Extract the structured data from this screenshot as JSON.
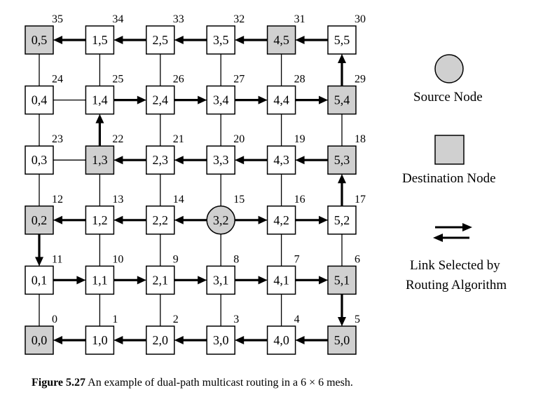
{
  "diagram": {
    "nodes": [
      {
        "id": "0,0",
        "col": 0,
        "row": 0,
        "type": "destination",
        "order": "0"
      },
      {
        "id": "1,0",
        "col": 1,
        "row": 0,
        "type": "normal",
        "order": "1"
      },
      {
        "id": "2,0",
        "col": 2,
        "row": 0,
        "type": "normal",
        "order": "2"
      },
      {
        "id": "3,0",
        "col": 3,
        "row": 0,
        "type": "normal",
        "order": "3"
      },
      {
        "id": "4,0",
        "col": 4,
        "row": 0,
        "type": "normal",
        "order": "4"
      },
      {
        "id": "5,0",
        "col": 5,
        "row": 0,
        "type": "destination",
        "order": "5"
      },
      {
        "id": "0,1",
        "col": 0,
        "row": 1,
        "type": "normal",
        "order": "11"
      },
      {
        "id": "1,1",
        "col": 1,
        "row": 1,
        "type": "normal",
        "order": "10"
      },
      {
        "id": "2,1",
        "col": 2,
        "row": 1,
        "type": "normal",
        "order": "9"
      },
      {
        "id": "3,1",
        "col": 3,
        "row": 1,
        "type": "normal",
        "order": "8"
      },
      {
        "id": "4,1",
        "col": 4,
        "row": 1,
        "type": "normal",
        "order": "7"
      },
      {
        "id": "5,1",
        "col": 5,
        "row": 1,
        "type": "destination",
        "order": "6"
      },
      {
        "id": "0,2",
        "col": 0,
        "row": 2,
        "type": "destination",
        "order": "12"
      },
      {
        "id": "1,2",
        "col": 1,
        "row": 2,
        "type": "normal",
        "order": "13"
      },
      {
        "id": "2,2",
        "col": 2,
        "row": 2,
        "type": "normal",
        "order": "14"
      },
      {
        "id": "3,2",
        "col": 3,
        "row": 2,
        "type": "source",
        "order": "15"
      },
      {
        "id": "4,2",
        "col": 4,
        "row": 2,
        "type": "normal",
        "order": "16"
      },
      {
        "id": "5,2",
        "col": 5,
        "row": 2,
        "type": "normal",
        "order": "17"
      },
      {
        "id": "0,3",
        "col": 0,
        "row": 3,
        "type": "normal",
        "order": "23"
      },
      {
        "id": "1,3",
        "col": 1,
        "row": 3,
        "type": "destination",
        "order": "22"
      },
      {
        "id": "2,3",
        "col": 2,
        "row": 3,
        "type": "normal",
        "order": "21"
      },
      {
        "id": "3,3",
        "col": 3,
        "row": 3,
        "type": "normal",
        "order": "20"
      },
      {
        "id": "4,3",
        "col": 4,
        "row": 3,
        "type": "normal",
        "order": "19"
      },
      {
        "id": "5,3",
        "col": 5,
        "row": 3,
        "type": "destination",
        "order": "18"
      },
      {
        "id": "0,4",
        "col": 0,
        "row": 4,
        "type": "normal",
        "order": "24"
      },
      {
        "id": "1,4",
        "col": 1,
        "row": 4,
        "type": "normal",
        "order": "25"
      },
      {
        "id": "2,4",
        "col": 2,
        "row": 4,
        "type": "normal",
        "order": "26"
      },
      {
        "id": "3,4",
        "col": 3,
        "row": 4,
        "type": "normal",
        "order": "27"
      },
      {
        "id": "4,4",
        "col": 4,
        "row": 4,
        "type": "normal",
        "order": "28"
      },
      {
        "id": "5,4",
        "col": 5,
        "row": 4,
        "type": "destination",
        "order": "29"
      },
      {
        "id": "0,5",
        "col": 0,
        "row": 5,
        "type": "destination",
        "order": "35"
      },
      {
        "id": "1,5",
        "col": 1,
        "row": 5,
        "type": "normal",
        "order": "34"
      },
      {
        "id": "2,5",
        "col": 2,
        "row": 5,
        "type": "normal",
        "order": "33"
      },
      {
        "id": "3,5",
        "col": 3,
        "row": 5,
        "type": "normal",
        "order": "32"
      },
      {
        "id": "4,5",
        "col": 4,
        "row": 5,
        "type": "destination",
        "order": "31"
      },
      {
        "id": "5,5",
        "col": 5,
        "row": 5,
        "type": "normal",
        "order": "30"
      }
    ],
    "selected_links": [
      {
        "from": "3,2",
        "to": "2,2"
      },
      {
        "from": "2,2",
        "to": "1,2"
      },
      {
        "from": "1,2",
        "to": "0,2"
      },
      {
        "from": "0,2",
        "to": "0,1"
      },
      {
        "from": "0,1",
        "to": "1,1"
      },
      {
        "from": "1,1",
        "to": "2,1"
      },
      {
        "from": "2,1",
        "to": "3,1"
      },
      {
        "from": "3,1",
        "to": "4,1"
      },
      {
        "from": "4,1",
        "to": "5,1"
      },
      {
        "from": "5,1",
        "to": "5,0"
      },
      {
        "from": "5,0",
        "to": "4,0"
      },
      {
        "from": "4,0",
        "to": "3,0"
      },
      {
        "from": "3,0",
        "to": "2,0"
      },
      {
        "from": "2,0",
        "to": "1,0"
      },
      {
        "from": "1,0",
        "to": "0,0"
      },
      {
        "from": "3,2",
        "to": "4,2"
      },
      {
        "from": "4,2",
        "to": "5,2"
      },
      {
        "from": "5,2",
        "to": "5,3"
      },
      {
        "from": "5,3",
        "to": "4,3"
      },
      {
        "from": "4,3",
        "to": "3,3"
      },
      {
        "from": "3,3",
        "to": "2,3"
      },
      {
        "from": "2,3",
        "to": "1,3"
      },
      {
        "from": "1,3",
        "to": "1,4"
      },
      {
        "from": "1,4",
        "to": "2,4"
      },
      {
        "from": "2,4",
        "to": "3,4"
      },
      {
        "from": "3,4",
        "to": "4,4"
      },
      {
        "from": "4,4",
        "to": "5,4"
      },
      {
        "from": "5,4",
        "to": "5,5"
      },
      {
        "from": "5,5",
        "to": "4,5"
      },
      {
        "from": "4,5",
        "to": "3,5"
      },
      {
        "from": "3,5",
        "to": "2,5"
      },
      {
        "from": "2,5",
        "to": "1,5"
      },
      {
        "from": "1,5",
        "to": "0,5"
      }
    ]
  },
  "legend": {
    "source_label": "Source Node",
    "destination_label": "Destination Node",
    "link_label_line1": "Link Selected by",
    "link_label_line2": "Routing Algorithm"
  },
  "caption": {
    "figure_label": "Figure 5.27",
    "text": " An example of dual-path multicast routing in a 6 × 6 mesh."
  },
  "colors": {
    "highlight_fill": "#d0d0d0",
    "node_fill": "#ffffff",
    "stroke": "#000000"
  }
}
